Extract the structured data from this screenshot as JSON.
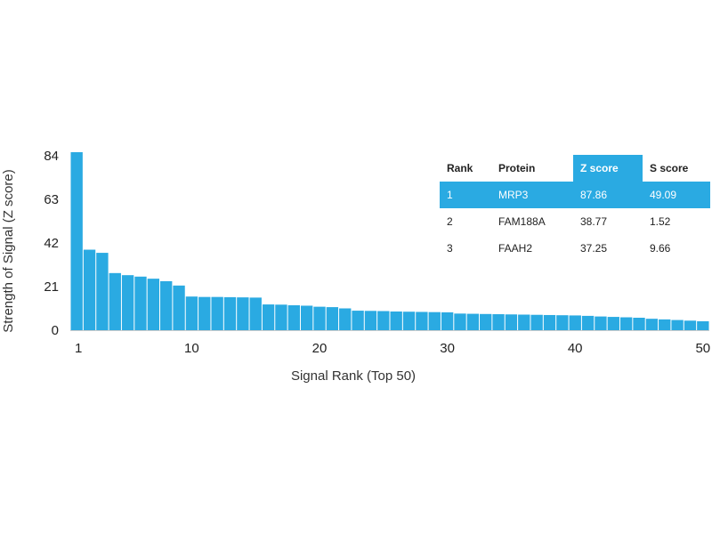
{
  "colors": {
    "bar": "#2aaae2",
    "highlight": "#2aaae2",
    "axis": "#cccccc"
  },
  "chart_data": {
    "type": "bar",
    "xlabel": "Signal Rank (Top 50)",
    "ylabel": "Strength of Signal (Z score)",
    "ylim": [
      0,
      84
    ],
    "yticks": [
      0,
      21,
      42,
      63,
      84
    ],
    "xticks": [
      1,
      10,
      20,
      30,
      40,
      50
    ],
    "grid": false,
    "categories": [
      1,
      2,
      3,
      4,
      5,
      6,
      7,
      8,
      9,
      10,
      11,
      12,
      13,
      14,
      15,
      16,
      17,
      18,
      19,
      20,
      21,
      22,
      23,
      24,
      25,
      26,
      27,
      28,
      29,
      30,
      31,
      32,
      33,
      34,
      35,
      36,
      37,
      38,
      39,
      40,
      41,
      42,
      43,
      44,
      45,
      46,
      47,
      48,
      49,
      50
    ],
    "values": [
      87.86,
      38.77,
      37.25,
      27.5,
      26.5,
      25.8,
      24.8,
      23.6,
      21.5,
      16.2,
      16.0,
      16.0,
      15.9,
      15.8,
      15.7,
      12.4,
      12.3,
      12.0,
      11.8,
      11.3,
      11.1,
      10.5,
      9.4,
      9.3,
      9.2,
      9.0,
      8.9,
      8.8,
      8.7,
      8.6,
      8.0,
      7.9,
      7.8,
      7.7,
      7.6,
      7.5,
      7.4,
      7.3,
      7.2,
      7.1,
      6.9,
      6.6,
      6.4,
      6.2,
      6.0,
      5.5,
      5.2,
      4.9,
      4.6,
      4.3
    ]
  },
  "table": {
    "headers": [
      "Rank",
      "Protein",
      "Z score",
      "S score"
    ],
    "rows": [
      [
        "1",
        "MRP3",
        "87.86",
        "49.09"
      ],
      [
        "2",
        "FAM188A",
        "38.77",
        "1.52"
      ],
      [
        "3",
        "FAAH2",
        "37.25",
        "9.66"
      ]
    ]
  }
}
